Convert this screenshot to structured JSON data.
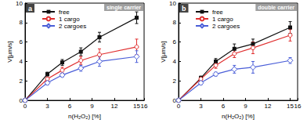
{
  "chart_data": [
    {
      "type": "line",
      "title": "single carrier",
      "annotations": [
        "a"
      ],
      "x_label": "n(H₂O₂) [%]",
      "y_label": "V[µm/s]",
      "x": [
        0,
        3,
        5,
        7.5,
        10,
        15
      ],
      "series": [
        {
          "name": "free",
          "color": "#111111",
          "marker": "filled square",
          "values": [
            0,
            2.7,
            3.9,
            5.0,
            6.5,
            8.5
          ],
          "errors": [
            0,
            0.2,
            0.3,
            0.4,
            0.5,
            0.6
          ]
        },
        {
          "name": "1 cargo",
          "color": "#e03030",
          "marker": "open circle",
          "values": [
            0,
            2.2,
            3.1,
            4.1,
            4.7,
            5.5
          ],
          "errors": [
            0,
            0.2,
            0.3,
            0.4,
            0.6,
            0.8
          ]
        },
        {
          "name": "2 cargoes",
          "color": "#4a5ed8",
          "marker": "open diamond",
          "values": [
            0,
            1.8,
            2.6,
            3.3,
            4.0,
            4.5
          ],
          "errors": [
            0,
            0.2,
            0.2,
            0.3,
            0.5,
            0.6
          ]
        }
      ],
      "xlim": [
        0,
        16
      ],
      "xticks": [
        0,
        3,
        6,
        9,
        12,
        15
      ],
      "ylim": [
        0,
        10
      ],
      "yticks": [
        0,
        2,
        4,
        6,
        8,
        10
      ],
      "grid": false,
      "legend": "upper left"
    },
    {
      "type": "line",
      "title": "double carrier",
      "annotations": [
        "b"
      ],
      "x_label": "n(H₂O₂) [%]",
      "y_label": "V[µm/s]",
      "x": [
        0,
        3,
        5,
        7.5,
        10,
        15
      ],
      "series": [
        {
          "name": "free",
          "color": "#111111",
          "marker": "filled square",
          "values": [
            0,
            2.3,
            4.0,
            5.3,
            5.8,
            7.5
          ],
          "errors": [
            0,
            0.2,
            0.3,
            0.5,
            0.5,
            0.6
          ]
        },
        {
          "name": "1 cargo",
          "color": "#e03030",
          "marker": "open circle",
          "values": [
            0,
            2.2,
            3.6,
            4.8,
            5.4,
            6.7
          ],
          "errors": [
            0,
            0.2,
            0.3,
            0.4,
            0.6,
            0.6
          ]
        },
        {
          "name": "2 cargoes",
          "color": "#4a5ed8",
          "marker": "open diamond",
          "values": [
            0,
            1.8,
            2.7,
            3.2,
            3.4,
            4.1
          ],
          "errors": [
            0,
            0.2,
            0.2,
            0.4,
            0.6,
            0.3
          ]
        }
      ],
      "xlim": [
        0,
        16
      ],
      "xticks": [
        0,
        3,
        6,
        9,
        12,
        15
      ],
      "ylim": [
        0,
        10
      ],
      "yticks": [
        0,
        2,
        4,
        6,
        8,
        10
      ],
      "grid": false,
      "legend": "upper left"
    }
  ]
}
